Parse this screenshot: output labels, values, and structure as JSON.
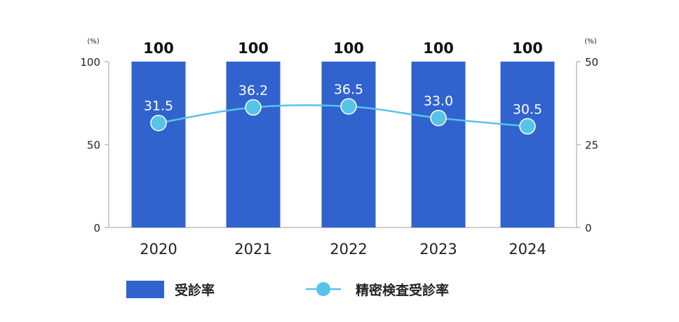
{
  "chart_data": {
    "type": "bar+line",
    "categories": [
      "2020",
      "2021",
      "2022",
      "2023",
      "2024"
    ],
    "series": [
      {
        "name": "受診率",
        "type": "bar",
        "axis": "left",
        "values": [
          100,
          100,
          100,
          100,
          100
        ],
        "labels": [
          "100",
          "100",
          "100",
          "100",
          "100"
        ],
        "color": "#3163cf"
      },
      {
        "name": "精密検査受診率",
        "type": "line",
        "axis": "right",
        "values": [
          31.5,
          36.2,
          36.5,
          33.0,
          30.5
        ],
        "labels": [
          "31.5",
          "36.2",
          "36.5",
          "33.0",
          "30.5"
        ],
        "color": "#58c3e8"
      }
    ],
    "left_axis": {
      "unit": "(%)",
      "ylim": [
        0,
        100
      ],
      "ticks": [
        "0",
        "50",
        "100"
      ]
    },
    "right_axis": {
      "unit": "(%)",
      "ylim": [
        0,
        50
      ],
      "ticks": [
        "0",
        "25",
        "50"
      ]
    },
    "legend_position": "bottom",
    "grid": false
  }
}
